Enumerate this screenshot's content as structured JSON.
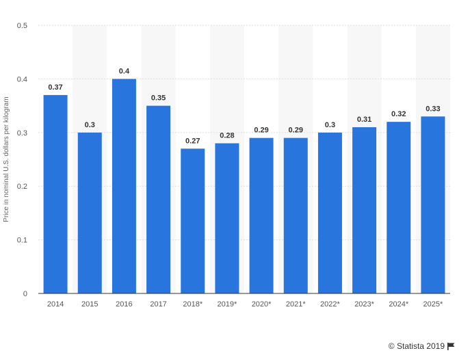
{
  "chart_data": {
    "type": "bar",
    "categories": [
      "2014",
      "2015",
      "2016",
      "2017",
      "2018*",
      "2019*",
      "2020*",
      "2021*",
      "2022*",
      "2023*",
      "2024*",
      "2025*"
    ],
    "values": [
      0.37,
      0.3,
      0.4,
      0.35,
      0.27,
      0.28,
      0.29,
      0.29,
      0.3,
      0.31,
      0.32,
      0.33
    ],
    "data_labels": [
      "0.37",
      "0.3",
      "0.4",
      "0.35",
      "0.27",
      "0.28",
      "0.29",
      "0.29",
      "0.3",
      "0.31",
      "0.32",
      "0.33"
    ],
    "ylabel": "Price in nominal U.S. dollars per kilogram",
    "ylim": [
      0,
      0.5
    ],
    "yticks": [
      "0",
      "0.1",
      "0.2",
      "0.3",
      "0.4",
      "0.5"
    ],
    "grid": true,
    "bar_color": "#2876dd",
    "alt_band_color": "#f7f7f7",
    "grid_color": "#dddddd"
  },
  "credit": {
    "text": "© Statista 2019",
    "icon": "flag-icon"
  }
}
